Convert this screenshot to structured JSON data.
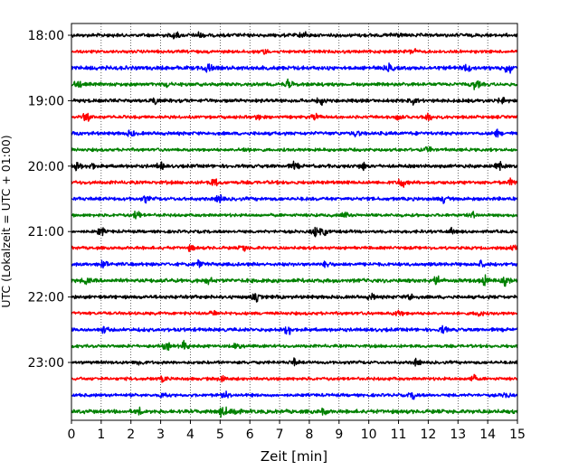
{
  "chart_data": {
    "type": "line",
    "title": "",
    "xlabel": "Zeit  [min]",
    "ylabel": "UTC (Lokalzeit = UTC + 01:00)",
    "xlim": [
      0,
      15
    ],
    "x_ticks": [
      0,
      1,
      2,
      3,
      4,
      5,
      6,
      7,
      8,
      9,
      10,
      11,
      12,
      13,
      14,
      15
    ],
    "y_tick_labels": [
      "18:00",
      "19:00",
      "20:00",
      "21:00",
      "22:00",
      "23:00"
    ],
    "grid": "vertical dotted at each minute",
    "line_colors": [
      "#000000",
      "#ff0000",
      "#0000ff",
      "#008000"
    ],
    "traces": [
      {
        "start": "18:00",
        "color": "#000000",
        "amplitude": 0.9,
        "bursts": [
          [
            3.5,
            1.6
          ],
          [
            4.3,
            1.3
          ],
          [
            7.8,
            1.4
          ],
          [
            10.9,
            1.3
          ]
        ]
      },
      {
        "start": "18:15",
        "color": "#ff0000",
        "amplitude": 0.8,
        "bursts": [
          [
            6.5,
            1.2
          ],
          [
            11.5,
            1.2
          ]
        ]
      },
      {
        "start": "18:30",
        "color": "#0000ff",
        "amplitude": 1.0,
        "bursts": [
          [
            4.6,
            2.6
          ],
          [
            13.3,
            1.4
          ],
          [
            14.7,
            2.2
          ],
          [
            10.7,
            1.5
          ]
        ]
      },
      {
        "start": "18:45",
        "color": "#008000",
        "amplitude": 0.9,
        "bursts": [
          [
            0.2,
            1.8
          ],
          [
            7.3,
            2.0
          ],
          [
            13.6,
            2.0
          ],
          [
            3.2,
            1.2
          ]
        ]
      },
      {
        "start": "19:00",
        "color": "#000000",
        "amplitude": 0.9,
        "bursts": [
          [
            2.8,
            1.4
          ],
          [
            8.4,
            1.4
          ],
          [
            11.5,
            1.2
          ],
          [
            14.5,
            1.2
          ]
        ]
      },
      {
        "start": "19:15",
        "color": "#ff0000",
        "amplitude": 0.8,
        "bursts": [
          [
            0.5,
            1.8
          ],
          [
            6.3,
            1.3
          ],
          [
            8.2,
            1.4
          ],
          [
            11.0,
            1.4
          ],
          [
            12.0,
            2.0
          ]
        ]
      },
      {
        "start": "19:30",
        "color": "#0000ff",
        "amplitude": 0.9,
        "bursts": [
          [
            2.0,
            1.2
          ],
          [
            9.6,
            1.3
          ],
          [
            14.3,
            1.3
          ]
        ]
      },
      {
        "start": "19:45",
        "color": "#008000",
        "amplitude": 0.8,
        "bursts": [
          [
            5.9,
            1.3
          ],
          [
            12.0,
            1.2
          ]
        ]
      },
      {
        "start": "20:00",
        "color": "#000000",
        "amplitude": 0.9,
        "bursts": [
          [
            0.2,
            1.6
          ],
          [
            0.7,
            1.6
          ],
          [
            3.0,
            1.4
          ],
          [
            7.5,
            1.6
          ],
          [
            9.8,
            1.5
          ],
          [
            14.4,
            1.4
          ]
        ]
      },
      {
        "start": "20:15",
        "color": "#ff0000",
        "amplitude": 0.9,
        "bursts": [
          [
            4.8,
            1.6
          ],
          [
            11.1,
            2.4
          ],
          [
            14.8,
            1.4
          ]
        ]
      },
      {
        "start": "20:30",
        "color": "#0000ff",
        "amplitude": 0.9,
        "bursts": [
          [
            2.5,
            1.3
          ],
          [
            5.0,
            1.8
          ],
          [
            12.5,
            1.4
          ]
        ]
      },
      {
        "start": "20:45",
        "color": "#008000",
        "amplitude": 0.8,
        "bursts": [
          [
            2.2,
            1.8
          ],
          [
            9.2,
            1.3
          ],
          [
            13.5,
            1.2
          ]
        ]
      },
      {
        "start": "21:00",
        "color": "#000000",
        "amplitude": 0.8,
        "bursts": [
          [
            1.0,
            1.8
          ],
          [
            8.2,
            2.0
          ],
          [
            8.5,
            1.8
          ],
          [
            12.8,
            1.3
          ]
        ]
      },
      {
        "start": "21:15",
        "color": "#ff0000",
        "amplitude": 0.8,
        "bursts": [
          [
            4.0,
            1.3
          ],
          [
            5.8,
            1.4
          ],
          [
            14.9,
            1.3
          ]
        ]
      },
      {
        "start": "21:30",
        "color": "#0000ff",
        "amplitude": 0.9,
        "bursts": [
          [
            1.1,
            1.5
          ],
          [
            4.3,
            1.6
          ],
          [
            8.6,
            1.3
          ],
          [
            13.8,
            1.4
          ]
        ]
      },
      {
        "start": "21:45",
        "color": "#008000",
        "amplitude": 1.0,
        "bursts": [
          [
            0.5,
            1.2
          ],
          [
            4.6,
            1.6
          ],
          [
            12.3,
            2.2
          ],
          [
            13.9,
            2.2
          ],
          [
            14.6,
            1.8
          ]
        ]
      },
      {
        "start": "22:00",
        "color": "#000000",
        "amplitude": 0.9,
        "bursts": [
          [
            6.2,
            1.8
          ],
          [
            11.4,
            1.8
          ],
          [
            10.1,
            1.3
          ]
        ]
      },
      {
        "start": "22:15",
        "color": "#ff0000",
        "amplitude": 0.8,
        "bursts": [
          [
            4.8,
            1.3
          ],
          [
            11.0,
            1.6
          ],
          [
            13.7,
            1.4
          ]
        ]
      },
      {
        "start": "22:30",
        "color": "#0000ff",
        "amplitude": 0.9,
        "bursts": [
          [
            1.1,
            1.3
          ],
          [
            7.3,
            2.2
          ],
          [
            12.5,
            1.6
          ]
        ]
      },
      {
        "start": "22:45",
        "color": "#008000",
        "amplitude": 0.8,
        "bursts": [
          [
            3.2,
            1.6
          ],
          [
            3.8,
            2.0
          ],
          [
            5.6,
            1.6
          ]
        ]
      },
      {
        "start": "23:00",
        "color": "#000000",
        "amplitude": 0.8,
        "bursts": [
          [
            2.3,
            1.4
          ],
          [
            7.5,
            1.4
          ],
          [
            11.6,
            1.3
          ]
        ]
      },
      {
        "start": "23:15",
        "color": "#ff0000",
        "amplitude": 0.8,
        "bursts": [
          [
            5.1,
            1.6
          ],
          [
            13.5,
            1.6
          ],
          [
            3.1,
            1.2
          ]
        ]
      },
      {
        "start": "23:30",
        "color": "#0000ff",
        "amplitude": 0.8,
        "bursts": [
          [
            3.1,
            1.3
          ],
          [
            5.2,
            1.4
          ],
          [
            11.5,
            1.6
          ],
          [
            14.6,
            1.2
          ]
        ]
      },
      {
        "start": "23:45",
        "color": "#008000",
        "amplitude": 1.0,
        "bursts": [
          [
            2.3,
            1.3
          ],
          [
            5.1,
            2.4
          ],
          [
            5.5,
            2.2
          ],
          [
            8.5,
            1.3
          ]
        ]
      }
    ]
  }
}
